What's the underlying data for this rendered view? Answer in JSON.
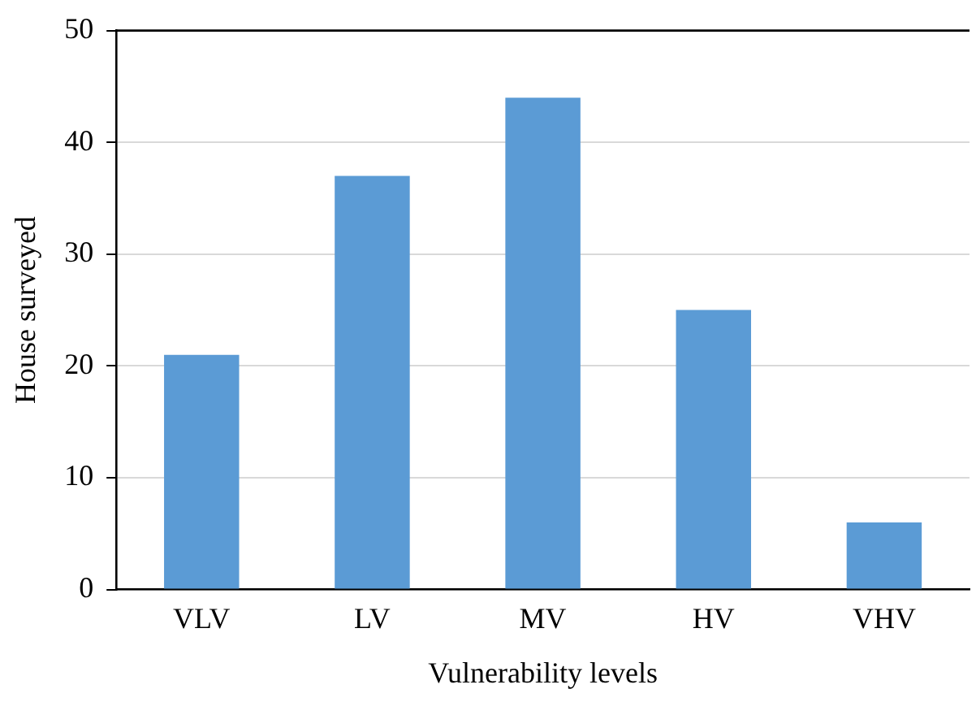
{
  "chart_data": {
    "type": "bar",
    "xlabel": "Vulnerability levels",
    "ylabel": "House surveyed",
    "categories": [
      "VLV",
      "LV",
      "MV",
      "HV",
      "VHV"
    ],
    "values": [
      21,
      37,
      44,
      25,
      6
    ],
    "color": "#5b9bd5",
    "ylim": [
      0,
      50
    ],
    "yticks": [
      0,
      10,
      20,
      30,
      40,
      50
    ],
    "grid": "y",
    "legend": false
  }
}
